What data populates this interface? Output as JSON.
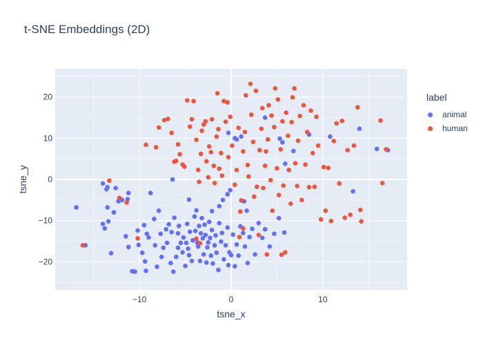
{
  "chart_data": {
    "type": "scatter",
    "title": "t-SNE Embeddings (2D)",
    "xlabel": "tsne_x",
    "ylabel": "tsne_y",
    "xlim": [
      -19.2,
      19.2
    ],
    "ylim": [
      -26.8,
      26.8
    ],
    "xticks": [
      -10,
      0,
      10
    ],
    "yticks": [
      -20,
      -10,
      0,
      10,
      20
    ],
    "grid": true,
    "legend_title": "label",
    "legend_position": "top-right, outside plot",
    "series": [
      {
        "name": "animal",
        "color": "#636efa",
        "points": [
          [
            -16.9,
            -6.8
          ],
          [
            -14.0,
            -1.0
          ],
          [
            -13.5,
            -1.9
          ],
          [
            -13.6,
            -2.4
          ],
          [
            -13.5,
            -6.8
          ],
          [
            -14.0,
            -10.8
          ],
          [
            -13.8,
            -11.9
          ],
          [
            -13.4,
            -10.2
          ],
          [
            -13.1,
            -17.9
          ],
          [
            -12.8,
            -8.0
          ],
          [
            -12.3,
            -5.3
          ],
          [
            -11.9,
            -5.0
          ],
          [
            -11.3,
            -4.8
          ],
          [
            -11.5,
            -13.8
          ],
          [
            -11.2,
            -16.4
          ],
          [
            -10.8,
            -22.3
          ],
          [
            -10.5,
            -22.4
          ],
          [
            -10.2,
            -12.4
          ],
          [
            -10.1,
            -15.9
          ],
          [
            -9.7,
            -17.8
          ],
          [
            -9.5,
            -11.1
          ],
          [
            -9.4,
            -19.9
          ],
          [
            -9.2,
            -13.2
          ],
          [
            -9.3,
            -22.2
          ],
          [
            -9.0,
            -14.1
          ],
          [
            -8.8,
            -3.3
          ],
          [
            -8.4,
            -9.6
          ],
          [
            -8.3,
            -16.0
          ],
          [
            -8.1,
            -21.2
          ],
          [
            -7.9,
            -7.6
          ],
          [
            -7.7,
            -13.2
          ],
          [
            -7.6,
            -18.8
          ],
          [
            -7.4,
            -16.6
          ],
          [
            -7.1,
            -12.1
          ],
          [
            -7.0,
            -15.4
          ],
          [
            -6.8,
            -10.9
          ],
          [
            -6.6,
            -20.3
          ],
          [
            -6.5,
            -12.8
          ],
          [
            -6.3,
            -22.4
          ],
          [
            -6.2,
            -9.3
          ],
          [
            -6.0,
            -18.8
          ],
          [
            -5.8,
            -13.1
          ],
          [
            -5.8,
            -16.6
          ],
          [
            -5.7,
            -11.3
          ],
          [
            -5.5,
            -15.4
          ],
          [
            -5.3,
            -17.7
          ],
          [
            -5.2,
            -14.1
          ],
          [
            -5.0,
            -21.0
          ],
          [
            -4.9,
            -15.4
          ],
          [
            -4.8,
            -10.8
          ],
          [
            -4.7,
            -16.8
          ],
          [
            -4.6,
            -18.4
          ],
          [
            -4.5,
            -12.7
          ],
          [
            -4.3,
            -19.8
          ],
          [
            -4.2,
            -14.8
          ],
          [
            -4.0,
            -9.0
          ],
          [
            -3.9,
            -12.5
          ],
          [
            -3.8,
            -7.5
          ],
          [
            -3.7,
            -15.3
          ],
          [
            -3.6,
            -16.3
          ],
          [
            -3.5,
            -11.3
          ],
          [
            -3.4,
            -19.8
          ],
          [
            -3.3,
            -13.1
          ],
          [
            -3.2,
            -9.4
          ],
          [
            -3.1,
            -14.3
          ],
          [
            -3.0,
            -18.2
          ],
          [
            -2.9,
            -11.0
          ],
          [
            -2.8,
            -13.5
          ],
          [
            -2.7,
            -20.2
          ],
          [
            -2.6,
            -16.5
          ],
          [
            -2.5,
            -15.3
          ],
          [
            -2.4,
            -10.3
          ],
          [
            -2.3,
            -14.2
          ],
          [
            -2.2,
            -18.5
          ],
          [
            -2.1,
            -12.3
          ],
          [
            -2.0,
            -20.4
          ],
          [
            -1.8,
            -16.0
          ],
          [
            -1.7,
            -13.6
          ],
          [
            -1.6,
            -17.8
          ],
          [
            -1.4,
            -22.0
          ],
          [
            -1.3,
            -10.6
          ],
          [
            -1.1,
            -15.1
          ],
          [
            -1.0,
            -13.0
          ],
          [
            -0.8,
            -19.4
          ],
          [
            -0.6,
            -16.0
          ],
          [
            -0.4,
            -11.7
          ],
          [
            -0.3,
            -20.8
          ],
          [
            -0.2,
            -17.7
          ],
          [
            0.0,
            -18.4
          ],
          [
            0.2,
            -13.4
          ],
          [
            0.4,
            -21.1
          ],
          [
            0.6,
            -15.8
          ],
          [
            0.8,
            -18.5
          ],
          [
            1.0,
            -11.4
          ],
          [
            1.3,
            -13.0
          ],
          [
            1.5,
            -16.3
          ],
          [
            1.8,
            -20.3
          ],
          [
            2.0,
            -14.0
          ],
          [
            2.3,
            -12.0
          ],
          [
            2.6,
            -18.2
          ],
          [
            3.0,
            -10.6
          ],
          [
            3.4,
            -14.2
          ],
          [
            3.7,
            -12.1
          ],
          [
            4.2,
            -16.3
          ],
          [
            4.7,
            -13.2
          ],
          [
            5.2,
            -9.4
          ],
          [
            5.8,
            -12.9
          ],
          [
            -15.9,
            -16.0
          ],
          [
            -12.6,
            -2.1
          ],
          [
            -11.2,
            -3.3
          ],
          [
            -3.6,
            -15.7
          ],
          [
            -2.1,
            -7.7
          ],
          [
            -1.3,
            -6.5
          ],
          [
            -0.9,
            -5.0
          ],
          [
            -0.4,
            -3.6
          ],
          [
            -0.1,
            -2.6
          ],
          [
            1.4,
            -5.3
          ],
          [
            1.7,
            -7.6
          ],
          [
            -4.6,
            -4.9
          ],
          [
            -6.4,
            0.0
          ],
          [
            -0.3,
            11.3
          ],
          [
            0.4,
            10.0
          ],
          [
            0.6,
            9.7
          ],
          [
            1.1,
            10.4
          ],
          [
            3.7,
            15.0
          ],
          [
            5.3,
            9.9
          ],
          [
            5.6,
            9.0
          ],
          [
            5.9,
            3.8
          ],
          [
            8.5,
            10.9
          ],
          [
            14.0,
            12.3
          ],
          [
            15.9,
            7.4
          ],
          [
            17.1,
            7.1
          ],
          [
            6.8,
            6.9
          ],
          [
            10.8,
            10.4
          ],
          [
            13.3,
            -2.9
          ]
        ]
      },
      {
        "name": "human",
        "color": "#ef553b",
        "points": [
          [
            -16.2,
            -16.0
          ],
          [
            -13.3,
            -0.3
          ],
          [
            -12.2,
            -4.5
          ],
          [
            -11.4,
            -5.6
          ],
          [
            -9.3,
            8.4
          ],
          [
            -8.2,
            7.8
          ],
          [
            -7.9,
            12.6
          ],
          [
            -7.3,
            14.4
          ],
          [
            -6.9,
            14.7
          ],
          [
            -6.5,
            11.3
          ],
          [
            -6.2,
            4.3
          ],
          [
            -6.0,
            4.5
          ],
          [
            -5.8,
            8.5
          ],
          [
            -5.6,
            6.1
          ],
          [
            -5.3,
            3.6
          ],
          [
            -5.1,
            3.1
          ],
          [
            -4.8,
            19.2
          ],
          [
            -4.5,
            12.8
          ],
          [
            -4.3,
            14.6
          ],
          [
            -4.1,
            19.0
          ],
          [
            -3.8,
            9.6
          ],
          [
            -3.6,
            2.3
          ],
          [
            -3.5,
            -0.6
          ],
          [
            -3.3,
            6.2
          ],
          [
            -3.2,
            11.8
          ],
          [
            -3.0,
            13.3
          ],
          [
            -2.8,
            14.1
          ],
          [
            -2.7,
            4.4
          ],
          [
            -2.5,
            0.5
          ],
          [
            -2.4,
            8.0
          ],
          [
            -2.2,
            6.6
          ],
          [
            -2.1,
            14.6
          ],
          [
            -1.9,
            3.3
          ],
          [
            -1.8,
            -0.9
          ],
          [
            -1.6,
            10.4
          ],
          [
            -1.5,
            20.9
          ],
          [
            -1.4,
            12.2
          ],
          [
            -1.3,
            2.6
          ],
          [
            -1.1,
            6.4
          ],
          [
            -1.0,
            0.9
          ],
          [
            -0.8,
            19.0
          ],
          [
            -0.6,
            14.0
          ],
          [
            -0.4,
            18.7
          ],
          [
            -0.3,
            5.4
          ],
          [
            -0.1,
            15.2
          ],
          [
            0.1,
            8.2
          ],
          [
            0.4,
            -1.3
          ],
          [
            0.6,
            2.3
          ],
          [
            0.8,
            12.5
          ],
          [
            1.0,
            -7.8
          ],
          [
            1.1,
            -5.1
          ],
          [
            1.3,
            6.8
          ],
          [
            1.5,
            11.5
          ],
          [
            1.6,
            20.4
          ],
          [
            1.8,
            3.5
          ],
          [
            1.9,
            0.7
          ],
          [
            2.1,
            23.2
          ],
          [
            2.2,
            15.7
          ],
          [
            2.4,
            9.1
          ],
          [
            2.5,
            -4.2
          ],
          [
            2.7,
            21.5
          ],
          [
            2.8,
            -1.8
          ],
          [
            3.0,
            -13.5
          ],
          [
            3.1,
            7.1
          ],
          [
            3.3,
            12.3
          ],
          [
            3.4,
            17.3
          ],
          [
            3.5,
            -2.1
          ],
          [
            3.7,
            3.3
          ],
          [
            3.8,
            6.8
          ],
          [
            4.0,
            9.7
          ],
          [
            4.1,
            18.0
          ],
          [
            4.3,
            -0.2
          ],
          [
            4.4,
            15.5
          ],
          [
            4.5,
            -7.6
          ],
          [
            4.7,
            12.7
          ],
          [
            4.8,
            22.1
          ],
          [
            5.0,
            2.7
          ],
          [
            5.1,
            19.4
          ],
          [
            5.2,
            -3.8
          ],
          [
            5.4,
            7.3
          ],
          [
            5.5,
            -18.3
          ],
          [
            5.6,
            14.1
          ],
          [
            5.7,
            -1.5
          ],
          [
            5.9,
            -17.7
          ],
          [
            6.0,
            16.2
          ],
          [
            6.2,
            10.6
          ],
          [
            6.3,
            2.3
          ],
          [
            6.5,
            -5.9
          ],
          [
            6.6,
            13.9
          ],
          [
            6.7,
            19.9
          ],
          [
            6.9,
            22.1
          ],
          [
            7.0,
            3.9
          ],
          [
            7.2,
            -1.6
          ],
          [
            7.3,
            9.4
          ],
          [
            7.5,
            15.4
          ],
          [
            7.7,
            -5.0
          ],
          [
            7.9,
            18.0
          ],
          [
            8.1,
            3.6
          ],
          [
            8.3,
            11.5
          ],
          [
            8.5,
            -1.9
          ],
          [
            8.7,
            16.7
          ],
          [
            8.9,
            6.4
          ],
          [
            9.1,
            -1.8
          ],
          [
            9.3,
            15.2
          ],
          [
            9.5,
            8.2
          ],
          [
            9.8,
            -9.7
          ],
          [
            10.1,
            3.0
          ],
          [
            10.3,
            -7.6
          ],
          [
            10.6,
            2.8
          ],
          [
            10.9,
            -10.1
          ],
          [
            11.2,
            9.3
          ],
          [
            11.5,
            13.6
          ],
          [
            11.8,
            -1.0
          ],
          [
            12.1,
            14.2
          ],
          [
            12.4,
            -9.3
          ],
          [
            12.7,
            7.1
          ],
          [
            13.0,
            -8.6
          ],
          [
            13.4,
            8.2
          ],
          [
            13.8,
            17.5
          ],
          [
            14.1,
            -7.4
          ],
          [
            14.2,
            -10.2
          ],
          [
            16.3,
            14.3
          ],
          [
            16.5,
            -0.9
          ],
          [
            16.9,
            7.3
          ],
          [
            -3.4,
            -15.5
          ],
          [
            -3.8,
            -14.4
          ],
          [
            -10.2,
            -14.3
          ],
          [
            0.9,
            -14.0
          ],
          [
            1.3,
            -11.9
          ],
          [
            3.9,
            -18.2
          ]
        ]
      }
    ]
  }
}
